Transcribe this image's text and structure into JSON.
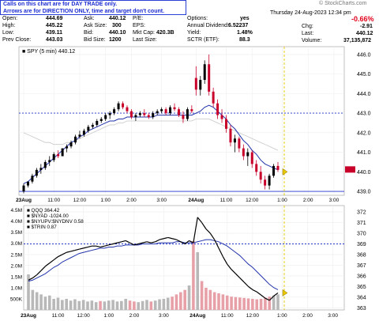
{
  "notice": {
    "line1": "Calls on this chart are for DAY TRADE only.",
    "line2": "Arrows are for DIRECTION ONLY, time and target don't count."
  },
  "watermark": "© StockCharts.com",
  "date_time": "Thursday  24-Aug-2023  12:34 pm",
  "quote": {
    "open": {
      "label": "Open:",
      "value": "444.69"
    },
    "high": {
      "label": "High:",
      "value": "445.22"
    },
    "low": {
      "label": "Low:",
      "value": "439.11"
    },
    "prev_close": {
      "label": "Prev Close:",
      "value": "443.03"
    },
    "ask": {
      "label": "Ask:",
      "value": "440.12"
    },
    "ask_size": {
      "label": "Ask Size:",
      "value": "300"
    },
    "bid": {
      "label": "Bid:",
      "value": "440.10"
    },
    "bid_size": {
      "label": "Bid Size:",
      "value": "1200"
    },
    "pe": {
      "label": "P/E:",
      "value": ""
    },
    "eps": {
      "label": "EPS:",
      "value": ""
    },
    "mkt_cap": {
      "label": "Mkt Cap:",
      "value": "420.3B"
    },
    "last_size": {
      "label": "Last Size:",
      "value": ""
    },
    "options": {
      "label": "Options:",
      "value": "yes"
    },
    "dividend": {
      "label": "Annual Dividend:",
      "value": "6.52237"
    },
    "yield": {
      "label": "Yield:",
      "value": "1.48%"
    },
    "sctr": {
      "label": "SCTR (ETF):",
      "value": "88.3"
    },
    "pct_change": "-0.66%",
    "chg": {
      "label": "Chg:",
      "value": "-2.91"
    },
    "last": {
      "label": "Last:",
      "value": "440.12"
    },
    "volume": {
      "label": "Volume:",
      "value": "37,135,872"
    }
  },
  "colors": {
    "up": "#000000",
    "down": "#c8002a",
    "ma": "#2233aa",
    "ma_long": "#c8c8c8",
    "target": "#2233cc",
    "now": "#e8c800",
    "arrow": "#e8c800"
  },
  "chart_data": [
    {
      "type": "candlestick",
      "title": "SPY (5 min) 440.12",
      "x_tick_labels": [
        "23Aug",
        "11:00",
        "12:00",
        "1:00",
        "2:00",
        "3:00",
        "24Aug",
        "11:00",
        "12:00",
        "1:00",
        "2:00",
        "3:00"
      ],
      "y_tick_labels": [
        "439.0",
        "440.0",
        "441.0",
        "442.0",
        "443.0",
        "444.0",
        "445.0",
        "446.0"
      ],
      "ylim": [
        438.8,
        446.4
      ],
      "horizontal_lines": [
        443.0,
        439.0
      ],
      "series": [
        {
          "name": "",
          "ohlc": "open-high-low-close",
          "values": [
            [
              439.0,
              439.4,
              438.9,
              439.3
            ],
            [
              439.3,
              439.5,
              439.2,
              439.5
            ],
            [
              439.5,
              439.9,
              439.4,
              439.8
            ],
            [
              439.8,
              440.2,
              439.7,
              440.1
            ],
            [
              440.1,
              440.4,
              439.9,
              440.2
            ],
            [
              440.2,
              440.6,
              440.1,
              440.5
            ],
            [
              440.5,
              440.8,
              440.3,
              440.6
            ],
            [
              440.6,
              441.0,
              440.5,
              440.9
            ],
            [
              440.9,
              441.1,
              440.7,
              440.8
            ],
            [
              440.8,
              441.2,
              440.8,
              441.2
            ],
            [
              441.2,
              441.4,
              441.0,
              441.3
            ],
            [
              441.3,
              441.6,
              441.2,
              441.5
            ],
            [
              441.5,
              441.9,
              441.4,
              441.8
            ],
            [
              441.8,
              442.1,
              441.7,
              441.9
            ],
            [
              441.9,
              442.2,
              441.8,
              442.1
            ],
            [
              442.1,
              442.4,
              442.0,
              442.3
            ],
            [
              442.3,
              442.5,
              442.2,
              442.4
            ],
            [
              442.4,
              442.7,
              442.3,
              442.6
            ],
            [
              442.6,
              442.8,
              442.5,
              442.7
            ],
            [
              442.7,
              443.0,
              442.6,
              442.9
            ],
            [
              442.9,
              443.1,
              442.7,
              443.0
            ],
            [
              443.0,
              443.3,
              442.9,
              443.2
            ],
            [
              443.2,
              443.6,
              443.1,
              443.5
            ],
            [
              443.5,
              443.6,
              443.2,
              443.3
            ],
            [
              443.3,
              443.4,
              443.0,
              443.1
            ],
            [
              443.1,
              443.2,
              442.7,
              442.8
            ],
            [
              442.8,
              443.0,
              442.6,
              442.9
            ],
            [
              442.9,
              443.1,
              442.8,
              443.0
            ],
            [
              443.0,
              443.2,
              442.8,
              442.9
            ],
            [
              442.9,
              443.0,
              442.7,
              442.8
            ],
            [
              442.8,
              443.1,
              442.7,
              443.0
            ],
            [
              443.0,
              443.2,
              442.9,
              443.1
            ],
            [
              443.1,
              443.3,
              443.0,
              443.2
            ],
            [
              443.2,
              443.3,
              442.9,
              443.0
            ],
            [
              443.0,
              443.4,
              442.9,
              443.3
            ],
            [
              443.3,
              443.5,
              443.1,
              443.2
            ],
            [
              443.2,
              443.3,
              442.8,
              442.9
            ],
            [
              442.9,
              443.1,
              442.5,
              442.7
            ],
            [
              442.7,
              443.3,
              442.6,
              443.2
            ],
            [
              443.2,
              443.4,
              443.0,
              443.1
            ],
            [
              444.8,
              445.4,
              443.9,
              444.2
            ],
            [
              444.2,
              444.9,
              443.9,
              444.7
            ],
            [
              444.7,
              445.7,
              444.5,
              445.5
            ],
            [
              445.5,
              446.0,
              443.9,
              444.1
            ],
            [
              444.1,
              444.3,
              443.3,
              443.5
            ],
            [
              443.5,
              443.7,
              442.7,
              442.9
            ],
            [
              442.9,
              443.2,
              442.5,
              442.7
            ],
            [
              442.7,
              442.9,
              442.0,
              442.2
            ],
            [
              442.2,
              442.4,
              441.3,
              441.5
            ],
            [
              441.5,
              441.9,
              441.0,
              441.7
            ],
            [
              441.7,
              441.8,
              441.0,
              441.2
            ],
            [
              441.2,
              441.4,
              440.6,
              440.8
            ],
            [
              440.8,
              441.2,
              440.3,
              441.0
            ],
            [
              441.0,
              441.1,
              440.2,
              440.4
            ],
            [
              440.4,
              440.6,
              439.8,
              440.0
            ],
            [
              440.0,
              440.3,
              439.4,
              439.6
            ],
            [
              439.6,
              439.8,
              439.1,
              439.3
            ],
            [
              439.3,
              439.9,
              439.1,
              439.8
            ],
            [
              439.8,
              440.4,
              439.7,
              440.3
            ],
            [
              440.3,
              440.5,
              440.0,
              440.1
            ]
          ]
        },
        {
          "name": "",
          "kind": "moving-average",
          "values": [
            439.4,
            439.5,
            439.7,
            439.9,
            440.1,
            440.3,
            440.5,
            440.7,
            440.9,
            441.1,
            441.3,
            441.5,
            441.6,
            441.8,
            441.9,
            442.1,
            442.2,
            442.3,
            442.4,
            442.5,
            442.6,
            442.6,
            442.7,
            442.7,
            442.8,
            442.8,
            442.8,
            442.8,
            442.8,
            442.8,
            442.8,
            442.9,
            442.9,
            442.9,
            442.9,
            442.9,
            442.9,
            442.9,
            442.9,
            442.9,
            443.0,
            443.1,
            443.3,
            443.4,
            443.3,
            443.1,
            442.9,
            442.7,
            442.4,
            442.2,
            441.9,
            441.6,
            441.4,
            441.1,
            440.9,
            440.6,
            440.4,
            440.3,
            440.2,
            440.1
          ]
        },
        {
          "name": "",
          "kind": "long-moving-average",
          "values": [
            442.0,
            441.9,
            441.8,
            441.7,
            441.6,
            441.5,
            441.5,
            441.4,
            441.4,
            441.4,
            441.5,
            441.5,
            441.6,
            441.7,
            441.8,
            441.9,
            442.0,
            442.1,
            442.2,
            442.3,
            442.4,
            442.4,
            442.5,
            442.5,
            442.6,
            442.6,
            442.6,
            442.6,
            442.6,
            442.6,
            442.6,
            442.6,
            442.6,
            442.6,
            442.6,
            442.6,
            442.6,
            442.6,
            442.6,
            442.6,
            442.7,
            442.7,
            442.7,
            442.7,
            442.6,
            442.5,
            442.4,
            442.3,
            442.2,
            442.1,
            442.0,
            441.9,
            441.8,
            441.7,
            441.6,
            441.5,
            441.4,
            441.3,
            441.2,
            441.1
          ]
        }
      ]
    },
    {
      "type": "bar-line",
      "legend": [
        "QQQ 364.42",
        "$NYAD -1024.00",
        "$NYUPV:$NYDNV 0.58",
        "$TRIN 0.87"
      ],
      "x_tick_labels": [
        "23Aug",
        "11:00",
        "12:00",
        "1:00",
        "2:00",
        "3:00",
        "24Aug",
        "11:00",
        "12:00",
        "1:00",
        "2:00",
        "3:00"
      ],
      "y_tick_labels_right": [
        "363",
        "364",
        "365",
        "366",
        "367",
        "368",
        "369",
        "370",
        "371",
        "372"
      ],
      "y_tick_labels_left": [
        "500K",
        "1.0M",
        "1.5M",
        "2.0M",
        "2.5M",
        "3.0M",
        "3.5M",
        "4.0M",
        "4.5M"
      ],
      "ylim_price": [
        362.8,
        372.6
      ],
      "ylim_volume": [
        0,
        4700000
      ],
      "horizontal_lines": [
        369.0
      ],
      "series": [
        {
          "name": "QQQ 364.42",
          "values": [
            365.6,
            365.8,
            366.1,
            366.5,
            366.9,
            367.2,
            367.5,
            367.8,
            368.0,
            368.2,
            368.3,
            368.4,
            368.5,
            368.6,
            368.7,
            368.8,
            368.8,
            368.7,
            368.8,
            368.9,
            369.0,
            369.1,
            369.2,
            369.3,
            369.1,
            368.9,
            369.0,
            369.1,
            369.2,
            369.1,
            369.2,
            369.4,
            369.5,
            369.6,
            369.5,
            369.4,
            369.2,
            369.0,
            369.3,
            369.1,
            371.5,
            371.0,
            370.4,
            370.0,
            369.4,
            368.6,
            367.8,
            367.1,
            366.6,
            366.2,
            365.8,
            365.4,
            365.0,
            364.7,
            364.5,
            364.2,
            363.9,
            363.7,
            364.1,
            364.4
          ]
        },
        {
          "name": "",
          "kind": "moving-average",
          "values": [
            365.5,
            365.6,
            365.8,
            366.0,
            366.2,
            366.5,
            366.8,
            367.0,
            367.3,
            367.5,
            367.7,
            367.9,
            368.1,
            368.2,
            368.3,
            368.4,
            368.5,
            368.6,
            368.6,
            368.7,
            368.7,
            368.8,
            368.8,
            368.9,
            368.9,
            368.9,
            368.9,
            369.0,
            369.0,
            369.0,
            369.0,
            369.1,
            369.1,
            369.1,
            369.1,
            369.2,
            369.2,
            369.1,
            369.1,
            369.1,
            369.2,
            369.3,
            369.4,
            369.4,
            369.3,
            369.2,
            369.0,
            368.8,
            368.5,
            368.2,
            367.9,
            367.5,
            367.1,
            366.8,
            366.4,
            366.0,
            365.6,
            365.2,
            364.9,
            364.7
          ]
        },
        {
          "name": "",
          "kind": "volume",
          "values": [
            1600000,
            900000,
            800000,
            700000,
            600000,
            650000,
            500000,
            550000,
            450000,
            500000,
            420000,
            480000,
            400000,
            450000,
            380000,
            420000,
            350000,
            400000,
            380000,
            420000,
            450000,
            380000,
            400000,
            500000,
            420000,
            380000,
            350000,
            400000,
            450000,
            380000,
            420000,
            480000,
            500000,
            550000,
            600000,
            700000,
            800000,
            900000,
            1100000,
            3100000,
            2600000,
            1300000,
            1000000,
            900000,
            800000,
            750000,
            700000,
            650000,
            600000,
            580000,
            560000,
            540000,
            520000,
            500000,
            480000,
            500000,
            550000,
            600000,
            650000,
            700000
          ]
        }
      ]
    }
  ]
}
